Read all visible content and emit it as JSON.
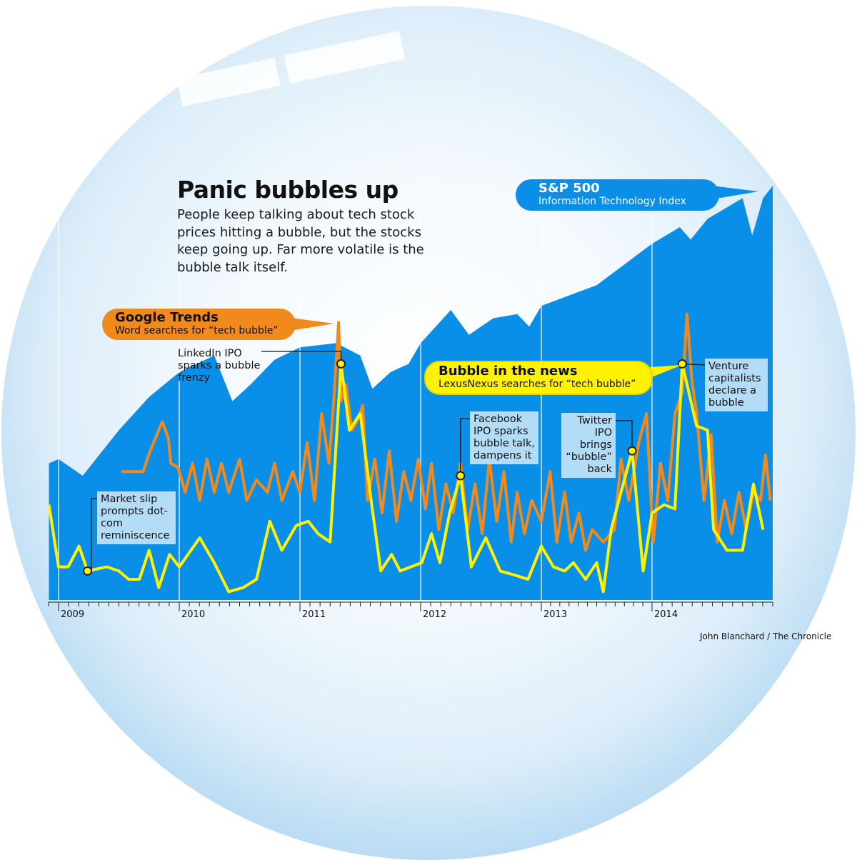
{
  "header": {
    "title": "Panic bubbles up",
    "description": "People keep talking about tech stock prices hitting a bubble, but the stocks keep going up. Far more volatile is the bubble talk itself."
  },
  "credit": "John Blanchard / The Chronicle",
  "colors": {
    "sp500": "#0a8fe8",
    "google_trends": "#f08a1c",
    "news": "#fff200",
    "note_box": "#b3dcf7"
  },
  "chart_data": {
    "type": "area+line",
    "title": "Panic bubbles up",
    "xlabel": "",
    "ylabel": "",
    "y_scale": "relative index (no axis printed)",
    "ylim": [
      0,
      100
    ],
    "xlim": [
      2008.92,
      2015.0
    ],
    "x_ticks": [
      "2009",
      "2010",
      "2011",
      "2012",
      "2013",
      "2014"
    ],
    "grid": "vertical year lines",
    "series": [
      {
        "name": "S&P 500",
        "subtitle": "Information Technology Index",
        "type": "area",
        "points": [
          [
            2008.92,
            33
          ],
          [
            2009.0,
            34
          ],
          [
            2009.2,
            30
          ],
          [
            2009.5,
            41
          ],
          [
            2009.75,
            49
          ],
          [
            2010.0,
            55
          ],
          [
            2010.29,
            59
          ],
          [
            2010.44,
            48
          ],
          [
            2010.59,
            52
          ],
          [
            2010.79,
            58
          ],
          [
            2011.0,
            61
          ],
          [
            2011.3,
            62
          ],
          [
            2011.5,
            59
          ],
          [
            2011.6,
            51
          ],
          [
            2011.75,
            55
          ],
          [
            2011.9,
            57
          ],
          [
            2012.0,
            62
          ],
          [
            2012.25,
            70
          ],
          [
            2012.4,
            64
          ],
          [
            2012.6,
            68
          ],
          [
            2012.8,
            69
          ],
          [
            2012.9,
            66
          ],
          [
            2013.0,
            71
          ],
          [
            2013.3,
            74
          ],
          [
            2013.5,
            76
          ],
          [
            2013.75,
            81
          ],
          [
            2014.0,
            86
          ],
          [
            2014.23,
            90
          ],
          [
            2014.32,
            87
          ],
          [
            2014.46,
            92
          ],
          [
            2014.75,
            97
          ],
          [
            2014.83,
            88
          ],
          [
            2014.92,
            97
          ],
          [
            2015.0,
            100
          ]
        ]
      },
      {
        "name": "Google Trends",
        "subtitle": "Word searches for “tech bubble”",
        "type": "line",
        "points": [
          [
            2009.52,
            31
          ],
          [
            2009.7,
            31
          ],
          [
            2009.76,
            36
          ],
          [
            2009.83,
            41
          ],
          [
            2009.86,
            43
          ],
          [
            2009.91,
            39
          ],
          [
            2009.93,
            33
          ],
          [
            2009.99,
            32
          ],
          [
            2010.05,
            26
          ],
          [
            2010.11,
            33
          ],
          [
            2010.17,
            24
          ],
          [
            2010.23,
            34
          ],
          [
            2010.29,
            26
          ],
          [
            2010.35,
            33
          ],
          [
            2010.41,
            26
          ],
          [
            2010.5,
            34
          ],
          [
            2010.56,
            24
          ],
          [
            2010.64,
            29
          ],
          [
            2010.73,
            26
          ],
          [
            2010.79,
            33
          ],
          [
            2010.85,
            24
          ],
          [
            2010.94,
            31
          ],
          [
            2011.0,
            26
          ],
          [
            2011.06,
            38
          ],
          [
            2011.12,
            24
          ],
          [
            2011.18,
            45
          ],
          [
            2011.24,
            33
          ],
          [
            2011.28,
            48
          ],
          [
            2011.32,
            67
          ],
          [
            2011.34,
            48
          ],
          [
            2011.38,
            52
          ],
          [
            2011.43,
            41
          ],
          [
            2011.47,
            43
          ],
          [
            2011.52,
            47
          ],
          [
            2011.56,
            24
          ],
          [
            2011.62,
            34
          ],
          [
            2011.68,
            21
          ],
          [
            2011.74,
            36
          ],
          [
            2011.8,
            19
          ],
          [
            2011.86,
            31
          ],
          [
            2011.92,
            24
          ],
          [
            2011.98,
            34
          ],
          [
            2012.04,
            22
          ],
          [
            2012.09,
            33
          ],
          [
            2012.15,
            17
          ],
          [
            2012.21,
            28
          ],
          [
            2012.27,
            21
          ],
          [
            2012.33,
            33
          ],
          [
            2012.39,
            17
          ],
          [
            2012.45,
            28
          ],
          [
            2012.51,
            16
          ],
          [
            2012.57,
            34
          ],
          [
            2012.63,
            19
          ],
          [
            2012.69,
            31
          ],
          [
            2012.75,
            14
          ],
          [
            2012.8,
            26
          ],
          [
            2012.86,
            16
          ],
          [
            2012.92,
            24
          ],
          [
            2013.0,
            19
          ],
          [
            2013.08,
            31
          ],
          [
            2013.14,
            14
          ],
          [
            2013.21,
            26
          ],
          [
            2013.27,
            14
          ],
          [
            2013.34,
            21
          ],
          [
            2013.4,
            12
          ],
          [
            2013.46,
            17
          ],
          [
            2013.56,
            14
          ],
          [
            2013.66,
            17
          ],
          [
            2013.72,
            34
          ],
          [
            2013.79,
            24
          ],
          [
            2013.88,
            38
          ],
          [
            2013.95,
            45
          ],
          [
            2014.01,
            14
          ],
          [
            2014.07,
            33
          ],
          [
            2014.13,
            24
          ],
          [
            2014.19,
            45
          ],
          [
            2014.25,
            50
          ],
          [
            2014.29,
            69
          ],
          [
            2014.33,
            53
          ],
          [
            2014.37,
            45
          ],
          [
            2014.43,
            24
          ],
          [
            2014.49,
            40
          ],
          [
            2014.54,
            14
          ],
          [
            2014.6,
            24
          ],
          [
            2014.66,
            16
          ],
          [
            2014.72,
            26
          ],
          [
            2014.78,
            17
          ],
          [
            2014.84,
            26
          ],
          [
            2014.9,
            24
          ],
          [
            2014.94,
            35
          ],
          [
            2014.98,
            24
          ]
        ]
      },
      {
        "name": "Bubble in the news",
        "subtitle": "LexusNexus searches for “tech bubble”",
        "type": "line",
        "points": [
          [
            2008.92,
            23
          ],
          [
            2009.0,
            8
          ],
          [
            2009.08,
            8
          ],
          [
            2009.17,
            13
          ],
          [
            2009.24,
            7
          ],
          [
            2009.4,
            8
          ],
          [
            2009.5,
            7
          ],
          [
            2009.58,
            5
          ],
          [
            2009.67,
            5
          ],
          [
            2009.75,
            12
          ],
          [
            2009.83,
            3
          ],
          [
            2009.92,
            11
          ],
          [
            2010.0,
            8
          ],
          [
            2010.17,
            15
          ],
          [
            2010.29,
            9
          ],
          [
            2010.41,
            2
          ],
          [
            2010.53,
            3
          ],
          [
            2010.64,
            5
          ],
          [
            2010.75,
            19
          ],
          [
            2010.85,
            12
          ],
          [
            2010.97,
            18
          ],
          [
            2011.07,
            19
          ],
          [
            2011.15,
            16
          ],
          [
            2011.25,
            14
          ],
          [
            2011.34,
            57
          ],
          [
            2011.41,
            41
          ],
          [
            2011.5,
            45
          ],
          [
            2011.59,
            24
          ],
          [
            2011.67,
            7
          ],
          [
            2011.76,
            11
          ],
          [
            2011.83,
            7
          ],
          [
            2012.01,
            9
          ],
          [
            2012.09,
            16
          ],
          [
            2012.16,
            9
          ],
          [
            2012.24,
            21
          ],
          [
            2012.33,
            30
          ],
          [
            2012.42,
            8
          ],
          [
            2012.54,
            15
          ],
          [
            2012.66,
            7
          ],
          [
            2012.78,
            6
          ],
          [
            2012.89,
            5
          ],
          [
            2013.0,
            13
          ],
          [
            2013.11,
            8
          ],
          [
            2013.21,
            7
          ],
          [
            2013.29,
            9
          ],
          [
            2013.4,
            5
          ],
          [
            2013.5,
            9
          ],
          [
            2013.56,
            2
          ],
          [
            2013.63,
            17
          ],
          [
            2013.72,
            26
          ],
          [
            2013.82,
            36
          ],
          [
            2013.92,
            7
          ],
          [
            2014.0,
            21
          ],
          [
            2014.1,
            23
          ],
          [
            2014.19,
            22
          ],
          [
            2014.25,
            57
          ],
          [
            2014.37,
            42
          ],
          [
            2014.46,
            41
          ],
          [
            2014.51,
            17
          ],
          [
            2014.62,
            12
          ],
          [
            2014.75,
            12
          ],
          [
            2014.84,
            28
          ],
          [
            2014.92,
            17
          ]
        ]
      }
    ],
    "annotations": [
      {
        "text": "Market slip prompts dot-com reminiscence",
        "x": 2009.24,
        "y": 7
      },
      {
        "text": "LinkedIn IPO sparks a bubble frenzy",
        "x": 2011.34,
        "y": 57
      },
      {
        "text": "Facebook IPO sparks bubble talk, dampens it",
        "x": 2012.33,
        "y": 30
      },
      {
        "text": "Twitter IPO brings “bubble” back",
        "x": 2013.82,
        "y": 36
      },
      {
        "text": "Venture capitalists declare a bubble",
        "x": 2014.25,
        "y": 57
      }
    ]
  }
}
